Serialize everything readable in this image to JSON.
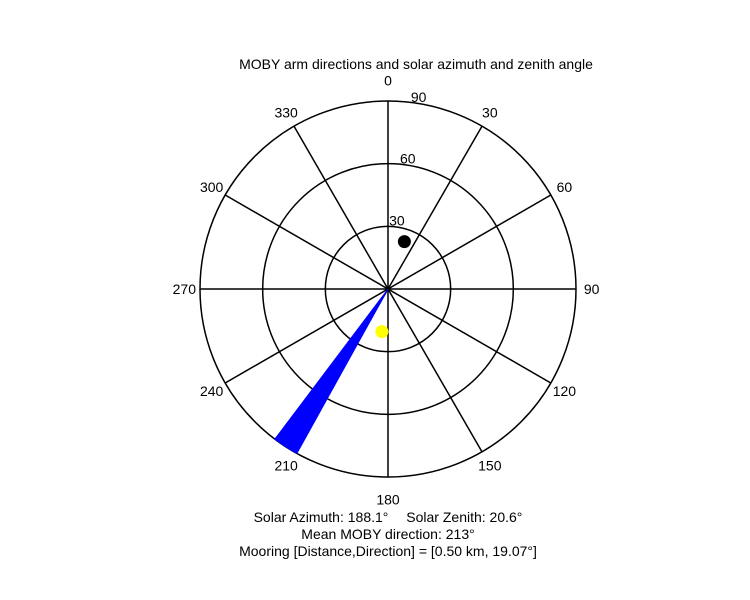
{
  "chart_data": {
    "type": "polar",
    "title": "MOBY arm directions and solar azimuth and zenith angle",
    "angle_ticks": [
      0,
      30,
      60,
      90,
      120,
      150,
      180,
      210,
      240,
      270,
      300,
      330
    ],
    "angle_labels": [
      "0",
      "30",
      "60",
      "90",
      "120",
      "150",
      "180",
      "210",
      "240",
      "270",
      "300",
      "330"
    ],
    "radial_range": [
      0,
      90
    ],
    "radial_ticks": [
      30,
      60,
      90
    ],
    "radial_labels": [
      "30",
      "60",
      "90"
    ],
    "radial_label_angle_deg": 10,
    "angle_direction": "clockwise",
    "zero_direction": "top",
    "grid": true,
    "series": [
      {
        "kind": "wedge",
        "color": "#0000ff",
        "angle_min": 209,
        "angle_max": 217,
        "radius": 90
      },
      {
        "kind": "point",
        "color": "#000000",
        "angle": 19.07,
        "radius": 24
      },
      {
        "kind": "point",
        "color": "#ffff00",
        "angle": 188.1,
        "radius": 20.6
      }
    ],
    "annotations": {
      "line1_a": "Solar Azimuth: 188.1°",
      "line1_b": "Solar Zenith: 20.6°",
      "line2": "Mean MOBY direction: 213°",
      "line3": "Mooring [Distance,Direction] = [0.50 km, 19.07°]"
    }
  }
}
